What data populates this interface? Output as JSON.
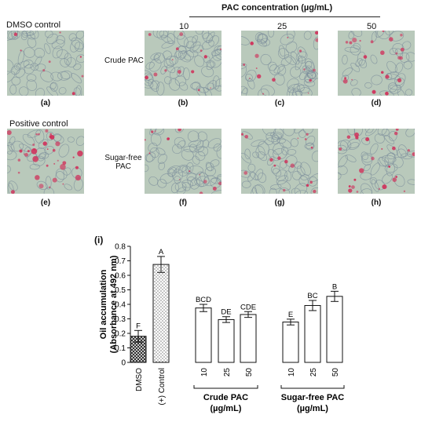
{
  "figure": {
    "top_labels": {
      "dmso_control": "DMSO control",
      "pac_concentration": "PAC concentration (µg/mL)",
      "positive_control": "Positive control"
    },
    "concentrations": [
      "10",
      "25",
      "50"
    ],
    "row_labels": {
      "crude": "Crude PAC",
      "sugar_free_line1": "Sugar-free",
      "sugar_free_line2": "PAC"
    },
    "panel_captions": [
      "(a)",
      "(b)",
      "(c)",
      "(d)",
      "(e)",
      "(f)",
      "(g)",
      "(h)"
    ],
    "panel_i_label": "(i)"
  },
  "chart_data": {
    "type": "bar",
    "ylabel_line1": "Oil accumulation",
    "ylabel_line2": "(Absorbance at 492 nm)",
    "ylim": [
      0,
      0.8
    ],
    "yticks": [
      "0",
      "0.1",
      "0.2",
      "0.3",
      "0.4",
      "0.5",
      "0.6",
      "0.7",
      "0.8"
    ],
    "categories": [
      "DMSO",
      "(+) Control",
      "10",
      "25",
      "50",
      "10",
      "25",
      "50"
    ],
    "values": [
      0.18,
      0.675,
      0.375,
      0.295,
      0.33,
      0.278,
      0.392,
      0.455
    ],
    "errors": [
      0.04,
      0.055,
      0.025,
      0.02,
      0.02,
      0.02,
      0.035,
      0.035
    ],
    "letters": [
      "F",
      "A",
      "BCD",
      "DE",
      "CDE",
      "E",
      "BC",
      "B"
    ],
    "fills": [
      "crosshatch",
      "dotted",
      "white",
      "white",
      "white",
      "white",
      "white",
      "white"
    ],
    "groups": [
      {
        "line1": "Crude PAC",
        "line2": "(µg/mL)"
      },
      {
        "line1": "Sugar-free PAC",
        "line2": "(µg/mL)"
      }
    ]
  },
  "colors": {
    "cell_background": "#b9c9bb",
    "cell_outline": "#7d8f9c",
    "stain": "#d0305a"
  }
}
